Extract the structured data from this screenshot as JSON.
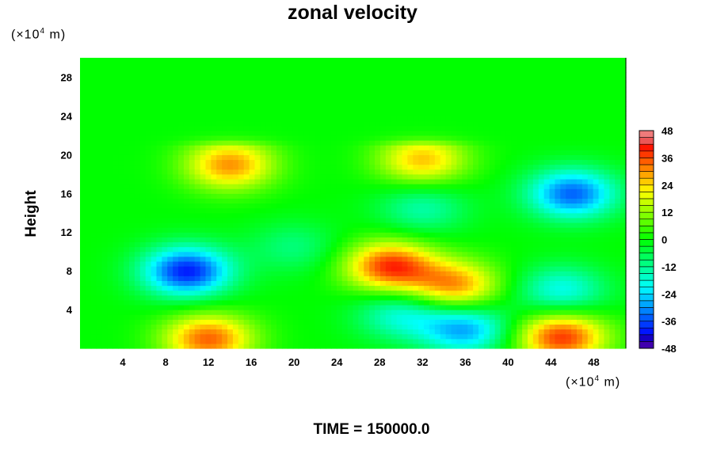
{
  "chart_data": {
    "type": "heatmap",
    "title": "zonal velocity",
    "ylabel": "Height",
    "xlabel": "",
    "x_unit": "(×10",
    "x_unit_exp": "4",
    "x_unit_tail": "m)",
    "y_unit": "(×10",
    "y_unit_exp": "4",
    "y_unit_tail": "m)",
    "xlim": [
      0,
      51
    ],
    "ylim": [
      0,
      30
    ],
    "x_ticks": [
      4,
      8,
      12,
      16,
      20,
      24,
      28,
      32,
      36,
      40,
      44,
      48
    ],
    "y_ticks": [
      4,
      8,
      12,
      16,
      20,
      24,
      28
    ],
    "colorbar": {
      "range": [
        -48,
        48
      ],
      "ticks": [
        48,
        36,
        24,
        12,
        0,
        -12,
        -24,
        -36,
        -48
      ],
      "levels": 32
    },
    "features": [
      {
        "x": 10,
        "y": 8,
        "value": -40
      },
      {
        "x": 29,
        "y": 8.5,
        "value": 38
      },
      {
        "x": 35,
        "y": 6.5,
        "value": 30
      },
      {
        "x": 14,
        "y": 19,
        "value": 30
      },
      {
        "x": 32,
        "y": 19.5,
        "value": 26
      },
      {
        "x": 46,
        "y": 16,
        "value": -34
      },
      {
        "x": 45,
        "y": 6,
        "value": -20
      },
      {
        "x": 36,
        "y": 2,
        "value": -28
      },
      {
        "x": 30,
        "y": 3.5,
        "value": -18
      },
      {
        "x": 12,
        "y": 1,
        "value": 34
      },
      {
        "x": 45,
        "y": 1.2,
        "value": 38
      },
      {
        "x": 32,
        "y": 14.5,
        "value": -14
      },
      {
        "x": 20,
        "y": 10.5,
        "value": -10
      }
    ],
    "footer_label": "TIME =",
    "footer_value": "150000.0"
  }
}
